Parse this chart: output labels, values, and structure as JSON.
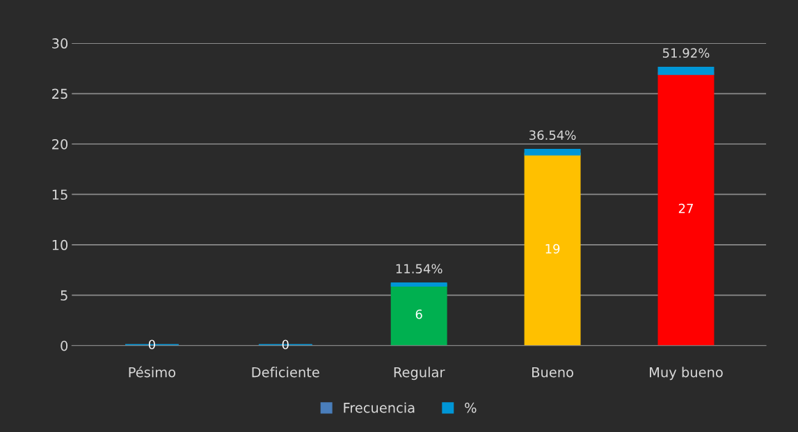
{
  "chart_data": {
    "type": "bar",
    "stacked": true,
    "categories": [
      "Pésimo",
      "Deficiente",
      "Regular",
      "Bueno",
      "Muy bueno"
    ],
    "series": [
      {
        "name": "Frecuencia",
        "color": "#4a7ebb",
        "colors": [
          "#4a7ebb",
          "#4a7ebb",
          "#00b050",
          "#ffc000",
          "#ff0000"
        ],
        "values": [
          0,
          0,
          6,
          19,
          27
        ],
        "value_labels": [
          "0",
          "0",
          "6",
          "19",
          "27"
        ]
      },
      {
        "name": "%",
        "color": "#0096d6",
        "values": [
          0,
          0,
          0.1154,
          0.3654,
          0.5192
        ],
        "value_labels": [
          null,
          null,
          "11.54%",
          "36.54%",
          "51.92%"
        ]
      }
    ],
    "ylim": [
      0,
      30
    ],
    "yticks": [
      0,
      5,
      10,
      15,
      20,
      25,
      30
    ],
    "grid": "y",
    "legend": "bottom"
  }
}
